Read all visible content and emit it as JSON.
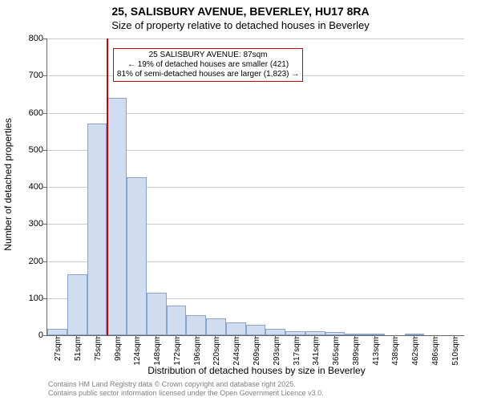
{
  "title": "25, SALISBURY AVENUE, BEVERLEY, HU17 8RA",
  "subtitle": "Size of property relative to detached houses in Beverley",
  "ylabel": "Number of detached properties",
  "xlabel": "Distribution of detached houses by size in Beverley",
  "chart": {
    "type": "histogram",
    "ylim": [
      0,
      800
    ],
    "ytick_step": 100,
    "yticks": [
      0,
      100,
      200,
      300,
      400,
      500,
      600,
      700,
      800
    ],
    "bar_fill": "#d0dcf0",
    "bar_border": "#8aa3cc",
    "grid_color": "#cccccc",
    "background_color": "#ffffff",
    "axis_color": "#666666",
    "reference_line_color": "#cc0000",
    "reference_value_sqm": 87,
    "categories": [
      "27sqm",
      "51sqm",
      "75sqm",
      "99sqm",
      "124sqm",
      "148sqm",
      "172sqm",
      "196sqm",
      "220sqm",
      "244sqm",
      "269sqm",
      "293sqm",
      "317sqm",
      "341sqm",
      "365sqm",
      "389sqm",
      "413sqm",
      "438sqm",
      "462sqm",
      "486sqm",
      "510sqm"
    ],
    "values": [
      18,
      165,
      570,
      640,
      425,
      115,
      80,
      55,
      45,
      35,
      28,
      18,
      10,
      10,
      8,
      5,
      4,
      0,
      3,
      2,
      2
    ],
    "num_bars": 21,
    "bar_width_ratio": 1.0
  },
  "annotation": {
    "line1": "25 SALISBURY AVENUE: 87sqm",
    "line2": "← 19% of detached houses are smaller (421)",
    "line3": "81% of semi-detached houses are larger (1,823) →"
  },
  "footer": {
    "line1": "Contains HM Land Registry data © Crown copyright and database right 2025.",
    "line2": "Contains public sector information licensed under the Open Government Licence v3.0."
  },
  "fonts": {
    "title_size": 14,
    "subtitle_size": 13,
    "axis_label_size": 12,
    "tick_label_size": 11,
    "x_tick_label_size": 10,
    "annotation_size": 10,
    "footer_size": 9
  }
}
